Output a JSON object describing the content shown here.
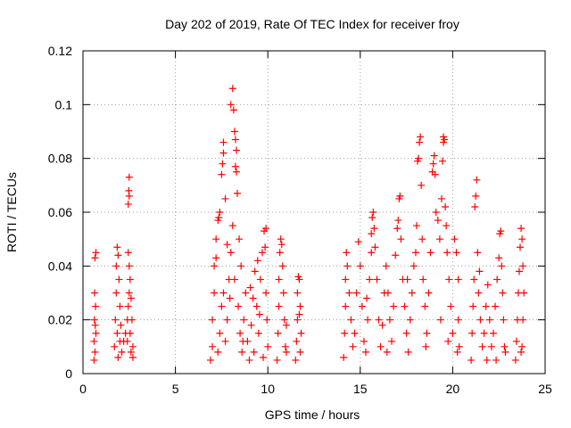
{
  "chart_data": {
    "type": "scatter",
    "title": "Day 202 of 2019, Rate Of TEC Index for receiver froy",
    "xlabel": "GPS time / hours",
    "ylabel": "ROTI / TECUs",
    "xlim": [
      0,
      25
    ],
    "ylim": [
      0,
      0.12
    ],
    "xticks": [
      0,
      5,
      10,
      15,
      20,
      25
    ],
    "yticks": [
      0,
      0.02,
      0.04,
      0.06,
      0.08,
      0.1,
      0.12
    ],
    "xtick_labels": [
      "0",
      "5",
      "10",
      "15",
      "20",
      "25"
    ],
    "ytick_labels": [
      "0",
      "0.02",
      "0.04",
      "0.06",
      "0.08",
      "0.1",
      "0.12"
    ],
    "grid": true,
    "marker": "+",
    "color": "#ff0000",
    "series": [
      {
        "name": "ROTI",
        "points": [
          [
            0.6,
            0.005
          ],
          [
            0.6,
            0.012
          ],
          [
            0.62,
            0.02
          ],
          [
            0.63,
            0.03
          ],
          [
            0.65,
            0.043
          ],
          [
            0.7,
            0.045
          ],
          [
            0.65,
            0.008
          ],
          [
            0.7,
            0.015
          ],
          [
            0.68,
            0.025
          ],
          [
            0.66,
            0.018
          ],
          [
            1.7,
            0.01
          ],
          [
            1.75,
            0.02
          ],
          [
            1.8,
            0.03
          ],
          [
            1.8,
            0.04
          ],
          [
            1.85,
            0.047
          ],
          [
            1.9,
            0.044
          ],
          [
            1.95,
            0.035
          ],
          [
            2.0,
            0.025
          ],
          [
            2.0,
            0.012
          ],
          [
            1.9,
            0.006
          ],
          [
            2.05,
            0.018
          ],
          [
            1.85,
            0.015
          ],
          [
            2.1,
            0.008
          ],
          [
            2.2,
            0.012
          ],
          [
            2.3,
            0.015
          ],
          [
            2.4,
            0.02
          ],
          [
            2.45,
            0.025
          ],
          [
            2.5,
            0.03
          ],
          [
            2.5,
            0.04
          ],
          [
            2.45,
            0.063
          ],
          [
            2.5,
            0.066
          ],
          [
            2.48,
            0.068
          ],
          [
            2.5,
            0.073
          ],
          [
            2.55,
            0.035
          ],
          [
            2.6,
            0.028
          ],
          [
            2.65,
            0.02
          ],
          [
            2.7,
            0.01
          ],
          [
            2.6,
            0.008
          ],
          [
            2.55,
            0.015
          ],
          [
            2.7,
            0.006
          ],
          [
            2.45,
            0.045
          ],
          [
            2.4,
            0.012
          ],
          [
            6.9,
            0.005
          ],
          [
            7.0,
            0.01
          ],
          [
            7.0,
            0.02
          ],
          [
            7.1,
            0.03
          ],
          [
            7.1,
            0.04
          ],
          [
            7.2,
            0.043
          ],
          [
            7.2,
            0.05
          ],
          [
            7.3,
            0.057
          ],
          [
            7.35,
            0.058
          ],
          [
            7.4,
            0.06
          ],
          [
            7.5,
            0.074
          ],
          [
            7.55,
            0.078
          ],
          [
            7.6,
            0.082
          ],
          [
            7.6,
            0.086
          ],
          [
            7.7,
            0.065
          ],
          [
            7.8,
            0.048
          ],
          [
            7.4,
            0.015
          ],
          [
            7.5,
            0.025
          ],
          [
            7.6,
            0.03
          ],
          [
            7.3,
            0.008
          ],
          [
            7.7,
            0.012
          ],
          [
            7.8,
            0.02
          ],
          [
            7.9,
            0.035
          ],
          [
            7.95,
            0.028
          ],
          [
            8.0,
            0.1
          ],
          [
            8.1,
            0.106
          ],
          [
            8.15,
            0.098
          ],
          [
            8.2,
            0.09
          ],
          [
            8.25,
            0.087
          ],
          [
            8.3,
            0.083
          ],
          [
            8.25,
            0.077
          ],
          [
            8.3,
            0.075
          ],
          [
            8.35,
            0.067
          ],
          [
            8.1,
            0.055
          ],
          [
            8.0,
            0.045
          ],
          [
            8.2,
            0.035
          ],
          [
            8.4,
            0.025
          ],
          [
            8.5,
            0.015
          ],
          [
            8.6,
            0.008
          ],
          [
            8.7,
            0.02
          ],
          [
            8.8,
            0.03
          ],
          [
            8.9,
            0.012
          ],
          [
            9.0,
            0.005
          ],
          [
            9.1,
            0.018
          ],
          [
            9.2,
            0.028
          ],
          [
            9.3,
            0.038
          ],
          [
            9.4,
            0.025
          ],
          [
            9.5,
            0.015
          ],
          [
            9.6,
            0.035
          ],
          [
            9.7,
            0.045
          ],
          [
            9.8,
            0.053
          ],
          [
            9.9,
            0.054
          ],
          [
            9.85,
            0.047
          ],
          [
            9.9,
            0.03
          ],
          [
            9.95,
            0.02
          ],
          [
            10.0,
            0.01
          ],
          [
            9.75,
            0.006
          ],
          [
            8.55,
            0.04
          ],
          [
            8.45,
            0.05
          ],
          [
            9.05,
            0.032
          ],
          [
            9.45,
            0.042
          ],
          [
            8.65,
            0.012
          ],
          [
            9.25,
            0.008
          ],
          [
            9.55,
            0.022
          ],
          [
            10.5,
            0.005
          ],
          [
            10.55,
            0.015
          ],
          [
            10.6,
            0.025
          ],
          [
            10.6,
            0.035
          ],
          [
            10.65,
            0.045
          ],
          [
            10.7,
            0.05
          ],
          [
            10.75,
            0.048
          ],
          [
            10.8,
            0.04
          ],
          [
            10.85,
            0.03
          ],
          [
            10.9,
            0.02
          ],
          [
            10.95,
            0.01
          ],
          [
            11.0,
            0.008
          ],
          [
            11.0,
            0.018
          ],
          [
            11.5,
            0.005
          ],
          [
            11.55,
            0.012
          ],
          [
            11.6,
            0.02
          ],
          [
            11.6,
            0.03
          ],
          [
            11.65,
            0.036
          ],
          [
            11.7,
            0.035
          ],
          [
            11.75,
            0.025
          ],
          [
            11.8,
            0.015
          ],
          [
            11.75,
            0.008
          ],
          [
            11.7,
            0.022
          ],
          [
            14.1,
            0.006
          ],
          [
            14.15,
            0.015
          ],
          [
            14.2,
            0.025
          ],
          [
            14.2,
            0.035
          ],
          [
            14.25,
            0.045
          ],
          [
            14.3,
            0.04
          ],
          [
            14.4,
            0.03
          ],
          [
            14.5,
            0.02
          ],
          [
            14.6,
            0.01
          ],
          [
            14.7,
            0.015
          ],
          [
            14.8,
            0.03
          ],
          [
            14.9,
            0.049
          ],
          [
            15.0,
            0.04
          ],
          [
            15.1,
            0.025
          ],
          [
            15.2,
            0.012
          ],
          [
            15.3,
            0.008
          ],
          [
            15.4,
            0.02
          ],
          [
            15.5,
            0.035
          ],
          [
            15.6,
            0.045
          ],
          [
            15.6,
            0.052
          ],
          [
            15.65,
            0.058
          ],
          [
            15.7,
            0.06
          ],
          [
            15.75,
            0.054
          ],
          [
            15.8,
            0.047
          ],
          [
            15.9,
            0.035
          ],
          [
            16.0,
            0.02
          ],
          [
            16.1,
            0.01
          ],
          [
            16.2,
            0.018
          ],
          [
            16.3,
            0.03
          ],
          [
            16.4,
            0.04
          ],
          [
            16.5,
            0.03
          ],
          [
            16.6,
            0.02
          ],
          [
            16.7,
            0.012
          ],
          [
            16.8,
            0.025
          ],
          [
            16.9,
            0.044
          ],
          [
            17.0,
            0.054
          ],
          [
            17.05,
            0.057
          ],
          [
            17.1,
            0.065
          ],
          [
            17.15,
            0.066
          ],
          [
            17.2,
            0.05
          ],
          [
            17.3,
            0.035
          ],
          [
            17.4,
            0.025
          ],
          [
            17.5,
            0.015
          ],
          [
            17.6,
            0.008
          ],
          [
            17.7,
            0.02
          ],
          [
            17.8,
            0.03
          ],
          [
            17.9,
            0.04
          ],
          [
            18.0,
            0.045
          ],
          [
            18.05,
            0.055
          ],
          [
            18.1,
            0.079
          ],
          [
            18.15,
            0.08
          ],
          [
            18.2,
            0.086
          ],
          [
            18.25,
            0.088
          ],
          [
            18.3,
            0.07
          ],
          [
            18.35,
            0.05
          ],
          [
            18.4,
            0.035
          ],
          [
            18.5,
            0.025
          ],
          [
            18.6,
            0.015
          ],
          [
            18.7,
            0.03
          ],
          [
            18.8,
            0.045
          ],
          [
            18.9,
            0.075
          ],
          [
            18.95,
            0.078
          ],
          [
            19.0,
            0.081
          ],
          [
            19.05,
            0.074
          ],
          [
            19.1,
            0.06
          ],
          [
            19.2,
            0.057
          ],
          [
            19.3,
            0.05
          ],
          [
            19.4,
            0.065
          ],
          [
            19.45,
            0.079
          ],
          [
            19.5,
            0.086
          ],
          [
            19.5,
            0.088
          ],
          [
            19.55,
            0.087
          ],
          [
            19.6,
            0.062
          ],
          [
            19.65,
            0.055
          ],
          [
            19.7,
            0.045
          ],
          [
            19.8,
            0.035
          ],
          [
            19.9,
            0.025
          ],
          [
            20.0,
            0.015
          ],
          [
            20.1,
            0.05
          ],
          [
            20.2,
            0.045
          ],
          [
            20.3,
            0.035
          ],
          [
            20.3,
            0.02
          ],
          [
            20.35,
            0.01
          ],
          [
            20.25,
            0.008
          ],
          [
            19.75,
            0.012
          ],
          [
            19.35,
            0.02
          ],
          [
            18.55,
            0.01
          ],
          [
            17.55,
            0.035
          ],
          [
            16.45,
            0.008
          ],
          [
            15.35,
            0.028
          ],
          [
            21.0,
            0.005
          ],
          [
            21.05,
            0.015
          ],
          [
            21.1,
            0.025
          ],
          [
            21.15,
            0.035
          ],
          [
            21.2,
            0.062
          ],
          [
            21.25,
            0.066
          ],
          [
            21.3,
            0.072
          ],
          [
            21.35,
            0.045
          ],
          [
            21.4,
            0.03
          ],
          [
            21.5,
            0.02
          ],
          [
            21.6,
            0.01
          ],
          [
            21.7,
            0.015
          ],
          [
            21.8,
            0.025
          ],
          [
            21.9,
            0.033
          ],
          [
            22.0,
            0.02
          ],
          [
            22.1,
            0.01
          ],
          [
            22.2,
            0.015
          ],
          [
            22.3,
            0.025
          ],
          [
            22.4,
            0.035
          ],
          [
            22.5,
            0.043
          ],
          [
            22.55,
            0.052
          ],
          [
            22.6,
            0.053
          ],
          [
            22.65,
            0.04
          ],
          [
            22.7,
            0.03
          ],
          [
            22.75,
            0.02
          ],
          [
            22.8,
            0.01
          ],
          [
            22.85,
            0.008
          ],
          [
            21.45,
            0.038
          ],
          [
            22.35,
            0.005
          ],
          [
            21.85,
            0.005
          ],
          [
            23.4,
            0.005
          ],
          [
            23.45,
            0.012
          ],
          [
            23.5,
            0.02
          ],
          [
            23.55,
            0.03
          ],
          [
            23.6,
            0.038
          ],
          [
            23.65,
            0.047
          ],
          [
            23.7,
            0.054
          ],
          [
            23.75,
            0.05
          ],
          [
            23.8,
            0.04
          ],
          [
            23.85,
            0.03
          ],
          [
            23.8,
            0.02
          ],
          [
            23.75,
            0.01
          ],
          [
            23.7,
            0.008
          ]
        ]
      }
    ]
  }
}
